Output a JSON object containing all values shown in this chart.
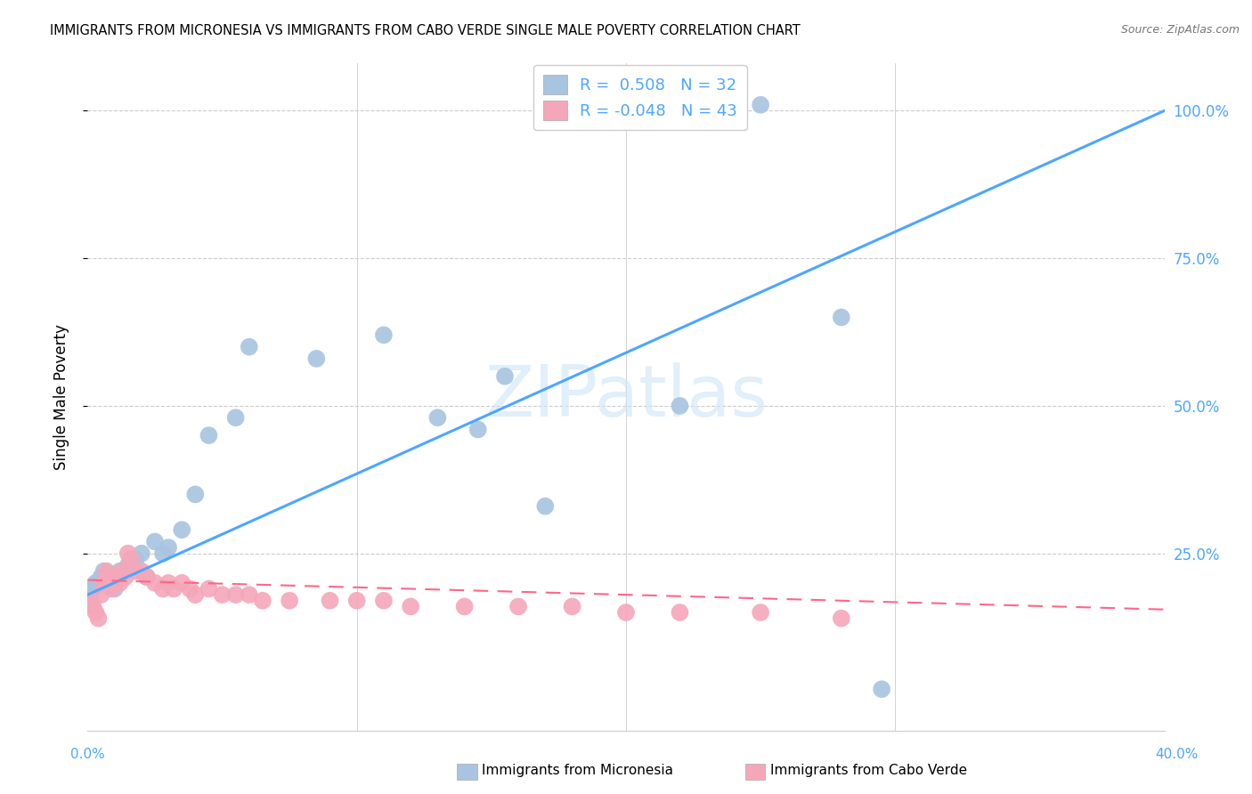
{
  "title": "IMMIGRANTS FROM MICRONESIA VS IMMIGRANTS FROM CABO VERDE SINGLE MALE POVERTY CORRELATION CHART",
  "source": "Source: ZipAtlas.com",
  "ylabel": "Single Male Poverty",
  "ytick_labels": [
    "100.0%",
    "75.0%",
    "50.0%",
    "25.0%"
  ],
  "ytick_values": [
    1.0,
    0.75,
    0.5,
    0.25
  ],
  "xlim": [
    0.0,
    0.4
  ],
  "ylim": [
    -0.05,
    1.08
  ],
  "watermark": "ZIPatlas",
  "legend_label1": "Immigrants from Micronesia",
  "legend_label2": "Immigrants from Cabo Verde",
  "R1": 0.508,
  "N1": 32,
  "R2": -0.048,
  "N2": 43,
  "color1": "#a8c4e0",
  "color2": "#f4a7b9",
  "line_color1": "#4da6ff",
  "line_color2": "#ff6688",
  "micronesia_x": [
    0.001,
    0.002,
    0.003,
    0.004,
    0.005,
    0.006,
    0.007,
    0.008,
    0.01,
    0.012,
    0.015,
    0.018,
    0.02,
    0.022,
    0.025,
    0.028,
    0.03,
    0.035,
    0.04,
    0.045,
    0.055,
    0.06,
    0.085,
    0.11,
    0.13,
    0.145,
    0.155,
    0.17,
    0.22,
    0.25,
    0.28,
    0.295
  ],
  "micronesia_y": [
    0.18,
    0.19,
    0.2,
    0.2,
    0.21,
    0.22,
    0.2,
    0.21,
    0.19,
    0.22,
    0.23,
    0.24,
    0.25,
    0.21,
    0.27,
    0.25,
    0.26,
    0.29,
    0.35,
    0.45,
    0.48,
    0.6,
    0.58,
    0.62,
    0.48,
    0.46,
    0.55,
    0.33,
    0.5,
    1.01,
    0.65,
    0.02
  ],
  "caboverde_x": [
    0.001,
    0.002,
    0.003,
    0.004,
    0.005,
    0.006,
    0.007,
    0.008,
    0.009,
    0.01,
    0.011,
    0.012,
    0.013,
    0.014,
    0.015,
    0.016,
    0.018,
    0.02,
    0.022,
    0.025,
    0.028,
    0.03,
    0.032,
    0.035,
    0.038,
    0.04,
    0.045,
    0.05,
    0.055,
    0.06,
    0.065,
    0.075,
    0.09,
    0.1,
    0.11,
    0.12,
    0.14,
    0.16,
    0.18,
    0.2,
    0.22,
    0.25,
    0.28
  ],
  "caboverde_y": [
    0.17,
    0.16,
    0.15,
    0.14,
    0.18,
    0.2,
    0.22,
    0.21,
    0.19,
    0.2,
    0.21,
    0.2,
    0.22,
    0.21,
    0.25,
    0.24,
    0.22,
    0.22,
    0.21,
    0.2,
    0.19,
    0.2,
    0.19,
    0.2,
    0.19,
    0.18,
    0.19,
    0.18,
    0.18,
    0.18,
    0.17,
    0.17,
    0.17,
    0.17,
    0.17,
    0.16,
    0.16,
    0.16,
    0.16,
    0.15,
    0.15,
    0.15,
    0.14
  ],
  "mic_trend_x": [
    0.0,
    0.4
  ],
  "mic_trend_y": [
    0.18,
    1.0
  ],
  "cv_trend_x": [
    0.0,
    0.4
  ],
  "cv_trend_y": [
    0.205,
    0.155
  ]
}
